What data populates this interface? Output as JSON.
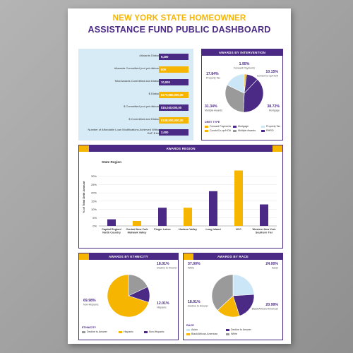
{
  "header": {
    "title_line1": "NEW YORK STATE HOMEOWNER",
    "title_line2": "ASSISTANCE FUND PUBLIC DASHBOARD"
  },
  "colors": {
    "purple": "#4b2a86",
    "gold": "#f5b500",
    "lightblue": "#cbe7f7",
    "gray": "#9a9a9a",
    "panel": "#d7ebf7"
  },
  "stats": [
    {
      "label": "#Awards Disbursed",
      "value": "9,200",
      "color": "#4b2a86"
    },
    {
      "label": "#Awards Committed (not yet disbursed)",
      "value": "800",
      "color": "#f5b500"
    },
    {
      "label": "Total Awards Committed and Disbursed",
      "value": "10,000",
      "color": "#4b2a86"
    },
    {
      "label": "$ Disbursed",
      "value": "$172,960,000,00",
      "color": "#f5b500"
    },
    {
      "label": "$ Committed (not yet disbursed)",
      "value": "$15,040,000,00",
      "color": "#4b2a86"
    },
    {
      "label": "$ Committed and Disbursed",
      "value": "$188,000,000,00",
      "color": "#f5b500"
    },
    {
      "label": "Number of Affordable Loan Modifications Achieved Without a HAF $ Award",
      "value": "2,000",
      "color": "#4b2a86"
    }
  ],
  "chart_data": [
    {
      "type": "pie",
      "title": "AWARDS BY INTERVENTION",
      "legend_title": "DEBT TYPE",
      "slices": [
        {
          "name": "Forward Payments",
          "value": 1.95,
          "label": "1.95%",
          "color": "#f5b500"
        },
        {
          "name": "Condo/Co-op/HOA",
          "value": 10.15,
          "label": "10.15%",
          "color": "#4b2a86"
        },
        {
          "name": "Mortgage",
          "value": 38.72,
          "label": "38.72%",
          "color": "#4b2a86"
        },
        {
          "name": "Multiple Awards",
          "value": 31.34,
          "label": "31.34%",
          "color": "#9a9a9a"
        },
        {
          "name": "Property Tax",
          "value": 17.84,
          "label": "17.84%",
          "color": "#cbe7f7"
        }
      ],
      "legend": [
        {
          "name": "Forward Payments",
          "color": "#f5b500"
        },
        {
          "name": "Mortgage",
          "color": "#4b2a86"
        },
        {
          "name": "Property Tax",
          "color": "#cbe7f7"
        },
        {
          "name": "Condo/Co-op/HOA",
          "color": "#f5b500"
        },
        {
          "name": "Multiple Awards",
          "color": "#9a9a9a"
        },
        {
          "name": "RHRO",
          "color": "#4b2a86"
        }
      ]
    },
    {
      "type": "bar",
      "title": "AWARDS REGION",
      "subtitle": "State Region",
      "ylabel": "% of Total Debt Amount",
      "ylim": [
        0,
        35
      ],
      "yticks": [
        0,
        5,
        10,
        15,
        20,
        25,
        30
      ],
      "categories": [
        "Capital Region/ North Country",
        "Central New York Mohawk Valley",
        "Finger Lakes",
        "Hudson Valley",
        "Long Island",
        "NYC",
        "Western New York Southern Tier"
      ],
      "values": [
        4,
        3,
        11,
        11,
        21,
        33.5,
        13
      ],
      "colors": [
        "#4b2a86",
        "#f5b500",
        "#4b2a86",
        "#f5b500",
        "#4b2a86",
        "#f5b500",
        "#4b2a86"
      ]
    },
    {
      "type": "pie",
      "title": "AWARDS BY ETHNICITY",
      "legend_title": "ETHNICITY",
      "slices": [
        {
          "name": "Decline to Answer",
          "value": 18.01,
          "label": "18.01%",
          "sublabel": "Decline to Answer",
          "color": "#9a9a9a"
        },
        {
          "name": "Hispanic",
          "value": 12.01,
          "label": "12.01%",
          "sublabel": "Hispanic",
          "color": "#4b2a86"
        },
        {
          "name": "Non-Hispanic",
          "value": 69.98,
          "label": "69.98%",
          "sublabel": "Non-Hispanic",
          "color": "#f5b500"
        }
      ],
      "legend": [
        {
          "name": "Decline to Answer",
          "color": "#9a9a9a"
        },
        {
          "name": "Hispanic",
          "color": "#f5b500"
        },
        {
          "name": "Non-Hispanic",
          "color": "#4b2a86"
        }
      ]
    },
    {
      "type": "pie",
      "title": "AWARDS BY RACE",
      "legend_title": "RACE",
      "slices": [
        {
          "name": "Asian",
          "value": 24.0,
          "label": "24.00%",
          "sublabel": "Asian",
          "color": "#cbe7f7"
        },
        {
          "name": "Black/African-American",
          "value": 20.99,
          "label": "20.99%",
          "sublabel": "Black/African-American",
          "color": "#4b2a86"
        },
        {
          "name": "Decline to Answer",
          "value": 18.01,
          "label": "18.01%",
          "sublabel": "Decline to Answer",
          "color": "#f5b500"
        },
        {
          "name": "White",
          "value": 37.0,
          "label": "37.00%",
          "sublabel": "White",
          "color": "#9a9a9a"
        }
      ],
      "legend": [
        {
          "name": "Asian",
          "color": "#cbe7f7"
        },
        {
          "name": "Decline to Answer",
          "color": "#4b2a86"
        },
        {
          "name": "Black/African-American",
          "color": "#f5b500"
        },
        {
          "name": "White",
          "color": "#9a9a9a"
        }
      ]
    }
  ]
}
